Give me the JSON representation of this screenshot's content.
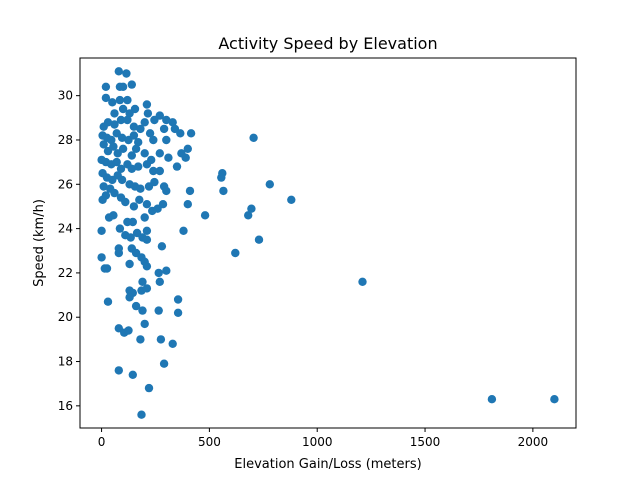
{
  "chart_data": {
    "type": "scatter",
    "title": "Activity Speed by Elevation",
    "xlabel": "Elevation Gain/Loss (meters)",
    "ylabel": "Speed (km/h)",
    "xlim": [
      -100,
      2200
    ],
    "ylim": [
      15.0,
      31.7
    ],
    "xticks": [
      0,
      500,
      1000,
      1500,
      2000
    ],
    "yticks": [
      16,
      18,
      20,
      22,
      24,
      26,
      28,
      30
    ],
    "grid": false,
    "legend": "none",
    "marker_color": "#1f77b4",
    "series": [
      {
        "points": [
          [
            80,
            31.1
          ],
          [
            115,
            31.0
          ],
          [
            85,
            30.4
          ],
          [
            100,
            30.4
          ],
          [
            20,
            30.4
          ],
          [
            140,
            30.5
          ],
          [
            20,
            29.9
          ],
          [
            50,
            29.7
          ],
          [
            85,
            29.8
          ],
          [
            120,
            29.8
          ],
          [
            210,
            29.6
          ],
          [
            155,
            29.4
          ],
          [
            100,
            29.4
          ],
          [
            60,
            29.2
          ],
          [
            130,
            29.2
          ],
          [
            215,
            29.2
          ],
          [
            270,
            29.1
          ],
          [
            300,
            28.9
          ],
          [
            330,
            28.8
          ],
          [
            245,
            28.9
          ],
          [
            10,
            28.6
          ],
          [
            30,
            28.8
          ],
          [
            60,
            28.7
          ],
          [
            90,
            28.9
          ],
          [
            120,
            28.9
          ],
          [
            150,
            28.6
          ],
          [
            180,
            28.5
          ],
          [
            200,
            28.8
          ],
          [
            340,
            28.5
          ],
          [
            365,
            28.3
          ],
          [
            415,
            28.3
          ],
          [
            290,
            28.5
          ],
          [
            225,
            28.3
          ],
          [
            5,
            28.2
          ],
          [
            25,
            28.1
          ],
          [
            45,
            28.0
          ],
          [
            70,
            28.3
          ],
          [
            95,
            28.1
          ],
          [
            125,
            28.0
          ],
          [
            150,
            28.2
          ],
          [
            170,
            27.9
          ],
          [
            240,
            28.0
          ],
          [
            300,
            28.0
          ],
          [
            705,
            28.1
          ],
          [
            10,
            27.8
          ],
          [
            30,
            27.5
          ],
          [
            55,
            27.7
          ],
          [
            75,
            27.4
          ],
          [
            100,
            27.6
          ],
          [
            140,
            27.3
          ],
          [
            160,
            27.6
          ],
          [
            200,
            27.4
          ],
          [
            230,
            27.1
          ],
          [
            270,
            27.4
          ],
          [
            310,
            27.2
          ],
          [
            370,
            27.4
          ],
          [
            400,
            27.6
          ],
          [
            390,
            27.2
          ],
          [
            0,
            27.1
          ],
          [
            20,
            27.0
          ],
          [
            45,
            26.9
          ],
          [
            70,
            27.0
          ],
          [
            90,
            26.7
          ],
          [
            120,
            26.9
          ],
          [
            140,
            26.7
          ],
          [
            170,
            26.8
          ],
          [
            210,
            26.9
          ],
          [
            240,
            26.6
          ],
          [
            270,
            26.6
          ],
          [
            350,
            26.8
          ],
          [
            560,
            26.5
          ],
          [
            555,
            26.3
          ],
          [
            5,
            26.5
          ],
          [
            25,
            26.3
          ],
          [
            50,
            26.2
          ],
          [
            75,
            26.4
          ],
          [
            95,
            26.2
          ],
          [
            130,
            26.0
          ],
          [
            155,
            25.9
          ],
          [
            180,
            25.8
          ],
          [
            220,
            25.9
          ],
          [
            245,
            26.1
          ],
          [
            290,
            25.9
          ],
          [
            300,
            25.7
          ],
          [
            410,
            25.7
          ],
          [
            565,
            25.7
          ],
          [
            780,
            26.0
          ],
          [
            10,
            25.9
          ],
          [
            40,
            25.8
          ],
          [
            60,
            25.6
          ],
          [
            90,
            25.4
          ],
          [
            110,
            25.2
          ],
          [
            150,
            25.0
          ],
          [
            175,
            25.3
          ],
          [
            210,
            25.1
          ],
          [
            235,
            24.8
          ],
          [
            260,
            24.9
          ],
          [
            285,
            25.1
          ],
          [
            400,
            25.1
          ],
          [
            880,
            25.3
          ],
          [
            5,
            25.3
          ],
          [
            20,
            25.5
          ],
          [
            35,
            24.5
          ],
          [
            55,
            24.6
          ],
          [
            120,
            24.3
          ],
          [
            145,
            24.3
          ],
          [
            200,
            24.5
          ],
          [
            480,
            24.6
          ],
          [
            680,
            24.6
          ],
          [
            695,
            24.9
          ],
          [
            0,
            23.9
          ],
          [
            85,
            24.0
          ],
          [
            110,
            23.7
          ],
          [
            135,
            23.6
          ],
          [
            165,
            23.8
          ],
          [
            190,
            23.6
          ],
          [
            210,
            23.9
          ],
          [
            210,
            23.5
          ],
          [
            380,
            23.9
          ],
          [
            730,
            23.5
          ],
          [
            80,
            23.1
          ],
          [
            140,
            23.1
          ],
          [
            160,
            22.9
          ],
          [
            185,
            22.7
          ],
          [
            280,
            23.2
          ],
          [
            620,
            22.9
          ],
          [
            80,
            22.9
          ],
          [
            0,
            22.7
          ],
          [
            15,
            22.2
          ],
          [
            25,
            22.2
          ],
          [
            130,
            22.4
          ],
          [
            200,
            22.5
          ],
          [
            210,
            22.3
          ],
          [
            265,
            22.0
          ],
          [
            300,
            22.1
          ],
          [
            190,
            21.6
          ],
          [
            270,
            21.6
          ],
          [
            1210,
            21.6
          ],
          [
            130,
            21.2
          ],
          [
            145,
            21.1
          ],
          [
            185,
            21.2
          ],
          [
            210,
            21.3
          ],
          [
            130,
            20.9
          ],
          [
            355,
            20.8
          ],
          [
            30,
            20.7
          ],
          [
            160,
            20.5
          ],
          [
            190,
            20.3
          ],
          [
            265,
            20.3
          ],
          [
            355,
            20.2
          ],
          [
            200,
            19.7
          ],
          [
            80,
            19.5
          ],
          [
            105,
            19.3
          ],
          [
            125,
            19.4
          ],
          [
            180,
            19.0
          ],
          [
            275,
            19.0
          ],
          [
            330,
            18.8
          ],
          [
            290,
            17.9
          ],
          [
            80,
            17.6
          ],
          [
            145,
            17.4
          ],
          [
            220,
            16.8
          ],
          [
            1810,
            16.3
          ],
          [
            2100,
            16.3
          ],
          [
            185,
            15.6
          ]
        ]
      }
    ]
  }
}
